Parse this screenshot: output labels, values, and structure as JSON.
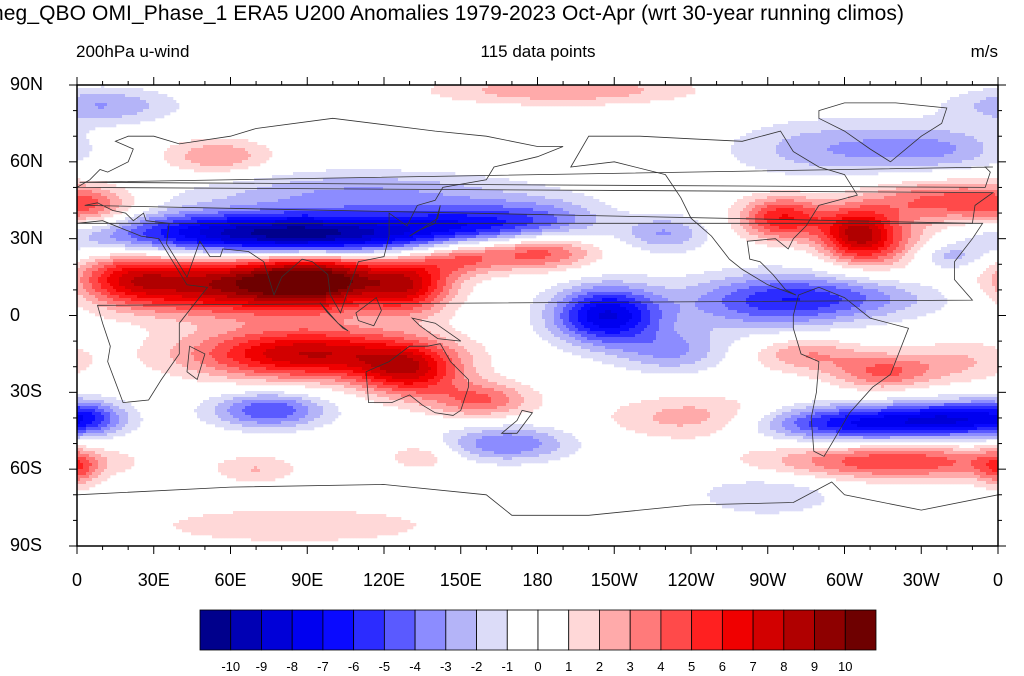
{
  "header": {
    "title": "neg_QBO OMI_Phase_1 ERA5 U200 Anomalies 1979-2023 Oct-Apr (wrt 30-year running climos)",
    "left_subtitle": "200hPa u-wind",
    "center_subtitle": "115 data points",
    "right_subtitle": "m/s"
  },
  "chart_data": {
    "type": "heatmap",
    "title": "neg_QBO OMI_Phase_1 ERA5 U200 Anomalies 1979-2023 Oct-Apr (wrt 30-year running climos)",
    "variable": "200hPa u-wind",
    "units": "m/s",
    "sample_size_text": "115 data points",
    "lat_ticks": [
      "90N",
      "60N",
      "30N",
      "0",
      "30S",
      "60S",
      "90S"
    ],
    "lon_ticks": [
      "0",
      "30E",
      "60E",
      "90E",
      "120E",
      "150E",
      "180",
      "150W",
      "120W",
      "90W",
      "60W",
      "30W",
      "0"
    ],
    "lat_range": [
      -90,
      90
    ],
    "lon_range": [
      0,
      360
    ],
    "colorbar": {
      "labels": [
        "-10",
        "-9",
        "-8",
        "-7",
        "-6",
        "-5",
        "-4",
        "-3",
        "-2",
        "-1",
        "0",
        "1",
        "2",
        "3",
        "4",
        "5",
        "6",
        "7",
        "8",
        "9",
        "10"
      ],
      "colors": [
        "#00008c",
        "#0000b4",
        "#0000d8",
        "#0000f0",
        "#0a0aff",
        "#2c2cff",
        "#5a5aff",
        "#8c8cff",
        "#b4b4f8",
        "#dcdcf8",
        "#ffffff",
        "#ffffff",
        "#ffd8d8",
        "#ffaaaa",
        "#ff7a7a",
        "#ff4a4a",
        "#ff2020",
        "#f00000",
        "#d20000",
        "#b00000",
        "#8e0000",
        "#6e0000"
      ]
    },
    "features": [
      {
        "lon": 55,
        "lat": 32,
        "value": -7,
        "sx": 40,
        "sy": 6
      },
      {
        "lon": 100,
        "lat": 31,
        "value": -7,
        "sx": 30,
        "sy": 6
      },
      {
        "lon": 150,
        "lat": 35,
        "value": -5,
        "sx": 22,
        "sy": 6
      },
      {
        "lon": 183,
        "lat": 37,
        "value": -3,
        "sx": 18,
        "sy": 6
      },
      {
        "lon": 110,
        "lat": 48,
        "value": -3,
        "sx": 45,
        "sy": 6
      },
      {
        "lon": 230,
        "lat": 32,
        "value": -3,
        "sx": 12,
        "sy": 5
      },
      {
        "lon": 55,
        "lat": 12,
        "value": 8,
        "sx": 30,
        "sy": 8
      },
      {
        "lon": 95,
        "lat": 14,
        "value": 9,
        "sx": 20,
        "sy": 8
      },
      {
        "lon": 130,
        "lat": 12,
        "value": 6,
        "sx": 12,
        "sy": 8
      },
      {
        "lon": 20,
        "lat": 15,
        "value": 4,
        "sx": 14,
        "sy": 7
      },
      {
        "lon": 90,
        "lat": -15,
        "value": 8,
        "sx": 32,
        "sy": 7
      },
      {
        "lon": 130,
        "lat": -22,
        "value": 6,
        "sx": 14,
        "sy": 7
      },
      {
        "lon": 158,
        "lat": -33,
        "value": 4,
        "sx": 14,
        "sy": 5
      },
      {
        "lon": 180,
        "lat": 25,
        "value": 5,
        "sx": 16,
        "sy": 5
      },
      {
        "lon": 150,
        "lat": 23,
        "value": 4,
        "sx": 12,
        "sy": 5
      },
      {
        "lon": 207,
        "lat": 0,
        "value": -8,
        "sx": 15,
        "sy": 8
      },
      {
        "lon": 233,
        "lat": -14,
        "value": -3,
        "sx": 15,
        "sy": 6
      },
      {
        "lon": 270,
        "lat": 5,
        "value": -4,
        "sx": 25,
        "sy": 8
      },
      {
        "lon": 300,
        "lat": 7,
        "value": -3,
        "sx": 30,
        "sy": 6
      },
      {
        "lon": 276,
        "lat": 38,
        "value": 6,
        "sx": 12,
        "sy": 6
      },
      {
        "lon": 305,
        "lat": 32,
        "value": 7,
        "sx": 10,
        "sy": 7
      },
      {
        "lon": 320,
        "lat": 28,
        "value": 3,
        "sx": 16,
        "sy": 8
      },
      {
        "lon": 335,
        "lat": 45,
        "value": 4,
        "sx": 20,
        "sy": 6
      },
      {
        "lon": 340,
        "lat": 23,
        "value": -3,
        "sx": 10,
        "sy": 4
      },
      {
        "lon": 300,
        "lat": 65,
        "value": -3,
        "sx": 30,
        "sy": 8
      },
      {
        "lon": 340,
        "lat": 65,
        "value": -2,
        "sx": 18,
        "sy": 6
      },
      {
        "lon": 10,
        "lat": 82,
        "value": -3,
        "sx": 20,
        "sy": 5
      },
      {
        "lon": 5,
        "lat": 42,
        "value": 4,
        "sx": 14,
        "sy": 6
      },
      {
        "lon": 55,
        "lat": 62,
        "value": 3,
        "sx": 15,
        "sy": 5
      },
      {
        "lon": 190,
        "lat": 88,
        "value": 3,
        "sx": 35,
        "sy": 4
      },
      {
        "lon": 305,
        "lat": -42,
        "value": -7,
        "sx": 30,
        "sy": 5
      },
      {
        "lon": 345,
        "lat": -40,
        "value": -5,
        "sx": 18,
        "sy": 5
      },
      {
        "lon": 320,
        "lat": -57,
        "value": 5,
        "sx": 35,
        "sy": 5
      },
      {
        "lon": 245,
        "lat": -40,
        "value": 3,
        "sx": 25,
        "sy": 6
      },
      {
        "lon": 315,
        "lat": -22,
        "value": 4,
        "sx": 14,
        "sy": 5
      },
      {
        "lon": 285,
        "lat": -15,
        "value": 3,
        "sx": 15,
        "sy": 5
      },
      {
        "lon": 345,
        "lat": -18,
        "value": 2,
        "sx": 15,
        "sy": 6
      },
      {
        "lon": 75,
        "lat": -37,
        "value": -5,
        "sx": 16,
        "sy": 5
      },
      {
        "lon": 168,
        "lat": -50,
        "value": -4,
        "sx": 18,
        "sy": 5
      },
      {
        "lon": 5,
        "lat": -40,
        "value": -3,
        "sx": 10,
        "sy": 5
      },
      {
        "lon": 0,
        "lat": -60,
        "value": 3,
        "sx": 6,
        "sy": 5
      },
      {
        "lon": 70,
        "lat": -60,
        "value": 2,
        "sx": 12,
        "sy": 4
      },
      {
        "lon": 270,
        "lat": -70,
        "value": -2,
        "sx": 20,
        "sy": 6
      },
      {
        "lon": 85,
        "lat": -82,
        "value": 2,
        "sx": 40,
        "sy": 5
      },
      {
        "lon": 135,
        "lat": -55,
        "value": 2,
        "sx": 10,
        "sy": 4
      }
    ]
  }
}
